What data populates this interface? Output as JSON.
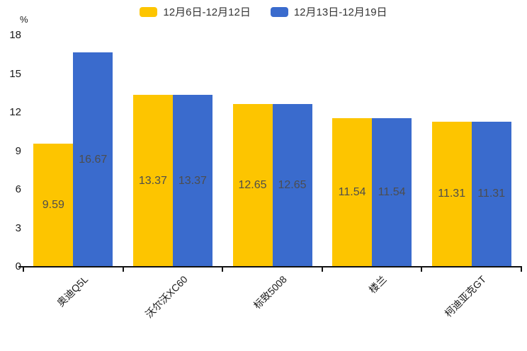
{
  "chart_data": {
    "type": "bar",
    "title": "",
    "ylabel": "%",
    "ylim": [
      0,
      18
    ],
    "yticks": [
      0,
      3,
      6,
      9,
      12,
      15,
      18
    ],
    "grid": false,
    "legend_position": "top-center",
    "categories": [
      "奥迪Q5L",
      "沃尔沃XC60",
      "标致5008",
      "楼兰",
      "柯迪亚克GT"
    ],
    "series": [
      {
        "name": "12月6日-12月12日",
        "color": "#FDC500",
        "values": [
          9.59,
          13.37,
          12.65,
          11.54,
          11.31
        ]
      },
      {
        "name": "12月13日-12月19日",
        "color": "#3A6BCD",
        "values": [
          16.67,
          13.37,
          12.65,
          11.54,
          11.31
        ]
      }
    ],
    "value_label_color": "#4d4d4d",
    "axis_color": "#111111",
    "tick_label_color": "#1a1a1a"
  }
}
